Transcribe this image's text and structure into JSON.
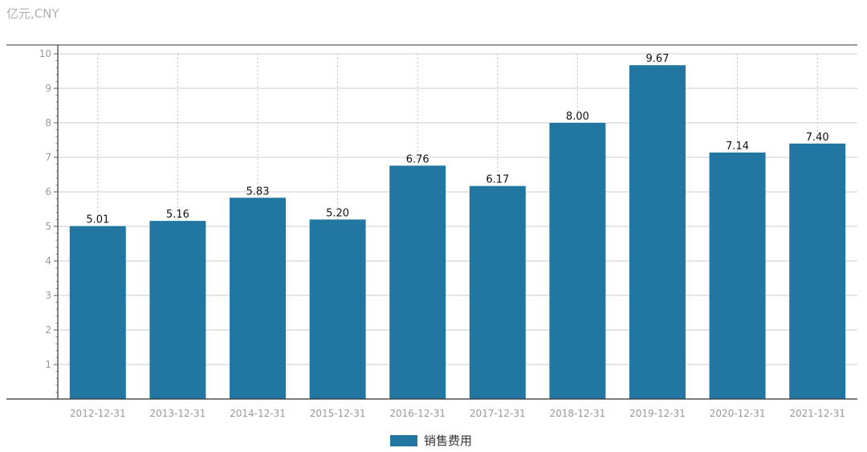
{
  "unit_label": "亿元,CNY",
  "chart_data": {
    "type": "bar",
    "categories": [
      "2012-12-31",
      "2013-12-31",
      "2014-12-31",
      "2015-12-31",
      "2016-12-31",
      "2017-12-31",
      "2018-12-31",
      "2019-12-31",
      "2020-12-31",
      "2021-12-31"
    ],
    "series": [
      {
        "name": "销售费用",
        "values": [
          5.01,
          5.16,
          5.83,
          5.2,
          6.76,
          6.17,
          8.0,
          9.67,
          7.14,
          7.4
        ],
        "value_labels": [
          "5.01",
          "5.16",
          "5.83",
          "5.20",
          "6.76",
          "6.17",
          "8.00",
          "9.67",
          "7.14",
          "7.40"
        ],
        "color": "#2277a2"
      }
    ],
    "ylim": [
      0,
      10
    ],
    "yticks": [
      "1",
      "2",
      "3",
      "4",
      "5",
      "6",
      "7",
      "8",
      "9",
      "10"
    ],
    "grid": true,
    "legend": "bottom-center"
  }
}
